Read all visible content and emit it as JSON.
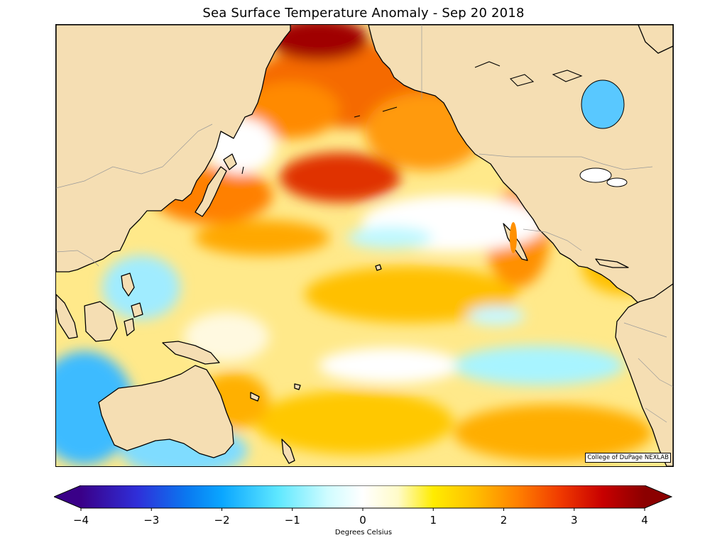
{
  "title": "Sea Surface Temperature Anomaly - Sep 20 2018",
  "credit": "College of DuPage NEXLAB",
  "colorbar": {
    "label": "Degrees Celsius",
    "min": -4,
    "max": 4,
    "ticks": [
      "−4",
      "−3",
      "−2",
      "−1",
      "0",
      "1",
      "2",
      "3",
      "4"
    ],
    "extend": "both",
    "stops": [
      {
        "v": -4,
        "c": "#3a0088"
      },
      {
        "v": -3.2,
        "c": "#2f2fd9"
      },
      {
        "v": -2.5,
        "c": "#0a78f0"
      },
      {
        "v": -2.0,
        "c": "#0aa6ff"
      },
      {
        "v": -1.2,
        "c": "#5fe8ff"
      },
      {
        "v": -0.5,
        "c": "#cffcff"
      },
      {
        "v": 0,
        "c": "#ffffff"
      },
      {
        "v": 0.5,
        "c": "#fffbc8"
      },
      {
        "v": 1.0,
        "c": "#ffec00"
      },
      {
        "v": 1.6,
        "c": "#ffbe00"
      },
      {
        "v": 2.2,
        "c": "#ff8000"
      },
      {
        "v": 2.8,
        "c": "#f03a00"
      },
      {
        "v": 3.4,
        "c": "#c80000"
      },
      {
        "v": 4,
        "c": "#8b0000"
      }
    ],
    "over_color": "#8b0000",
    "under_color": "#3a0088"
  },
  "map": {
    "region": "North Pacific Ocean",
    "ocean_base_color": "#ffe98a",
    "land_color": "#f5deb3",
    "coastline_color": "#000000",
    "border_color": "#888888"
  }
}
